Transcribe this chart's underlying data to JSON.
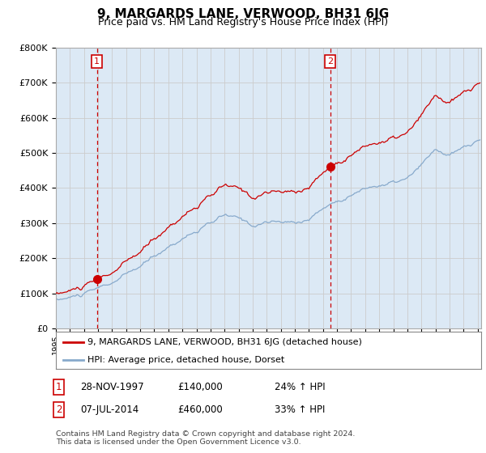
{
  "title": "9, MARGARDS LANE, VERWOOD, BH31 6JG",
  "subtitle": "Price paid vs. HM Land Registry's House Price Index (HPI)",
  "ylim": [
    0,
    800000
  ],
  "yticks": [
    0,
    100000,
    200000,
    300000,
    400000,
    500000,
    600000,
    700000,
    800000
  ],
  "ytick_labels": [
    "£0",
    "£100K",
    "£200K",
    "£300K",
    "£400K",
    "£500K",
    "£600K",
    "£700K",
    "£800K"
  ],
  "sale1_date": 1997.91,
  "sale1_price": 140000,
  "sale2_date": 2014.52,
  "sale2_price": 460000,
  "red_line_color": "#cc0000",
  "blue_line_color": "#88aacc",
  "grid_color": "#cccccc",
  "background_color": "#ffffff",
  "plot_bg_color": "#dce9f5",
  "legend_label_red": "9, MARGARDS LANE, VERWOOD, BH31 6JG (detached house)",
  "legend_label_blue": "HPI: Average price, detached house, Dorset",
  "annotation1_date": "28-NOV-1997",
  "annotation1_price": "£140,000",
  "annotation1_hpi": "24% ↑ HPI",
  "annotation2_date": "07-JUL-2014",
  "annotation2_price": "£460,000",
  "annotation2_hpi": "33% ↑ HPI",
  "footer": "Contains HM Land Registry data © Crown copyright and database right 2024.\nThis data is licensed under the Open Government Licence v3.0.",
  "title_fontsize": 11,
  "subtitle_fontsize": 9
}
